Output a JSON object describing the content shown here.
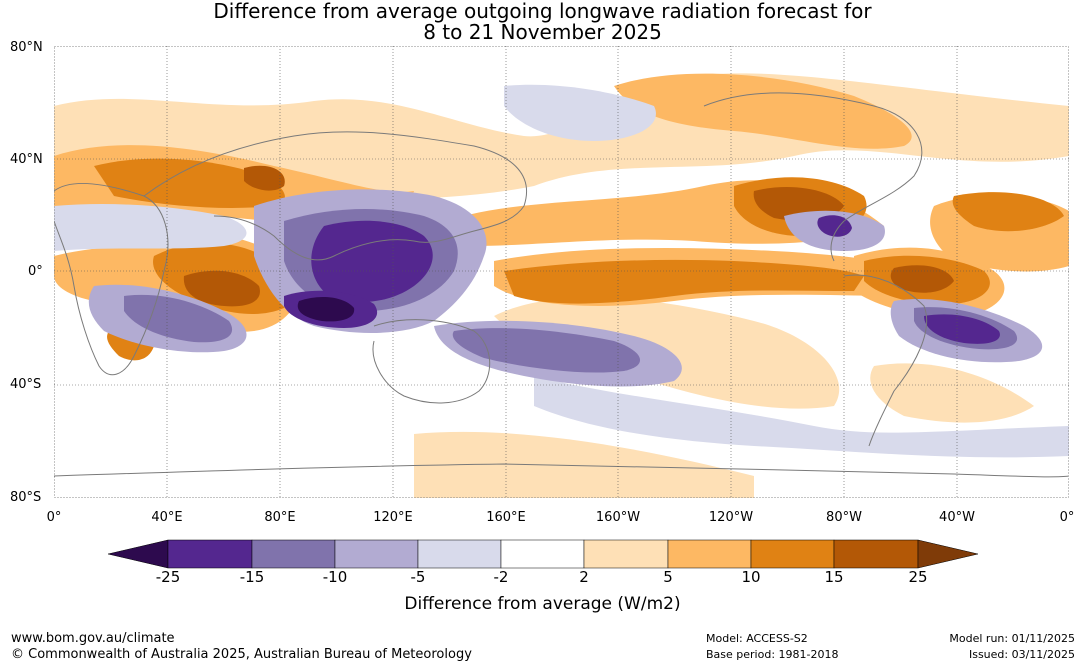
{
  "header": {
    "title_line1": "Difference from average outgoing longwave radiation forecast for",
    "title_line2": "8 to 21 November 2025"
  },
  "axes": {
    "lat_labels": [
      "80°N",
      "40°N",
      "0°",
      "40°S",
      "80°S"
    ],
    "lon_labels": [
      "0°",
      "40°E",
      "80°E",
      "120°E",
      "160°E",
      "160°W",
      "120°W",
      "80°W",
      "40°W",
      "0°"
    ]
  },
  "legend": {
    "ticks": [
      "-25",
      "-15",
      "-10",
      "-5",
      "-2",
      "2",
      "5",
      "10",
      "15",
      "25"
    ],
    "colors": {
      "below_-25": "#2d0a4e",
      "-25_-15": "#54278f",
      "-15_-10": "#8073ac",
      "-10_-5": "#b2abd2",
      "-5_-2": "#d8daeb",
      "-2_2": "#ffffff",
      "2_5": "#fee0b6",
      "5_10": "#fdb863",
      "10_15": "#e08214",
      "15_25": "#b35806",
      "above_25": "#7f3b08"
    },
    "label": "Difference from average (W/m2)"
  },
  "footer": {
    "website": "www.bom.gov.au/climate",
    "copyright": "© Commonwealth of Australia 2025, Australian Bureau of Meteorology",
    "model": "Model: ACCESS-S2",
    "base_period": "Base period: 1981-2018",
    "model_run": "Model run: 01/11/2025",
    "issued": "Issued: 03/11/2025"
  }
}
